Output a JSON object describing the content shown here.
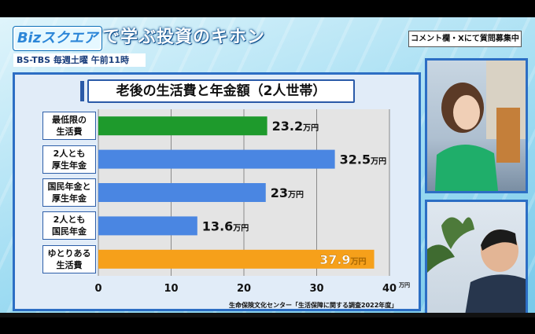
{
  "header": {
    "brand": "Bizスクエア",
    "show_title": "で学ぶ投資のキホン",
    "comment_notice": "コメント欄・Xにて質問募集中",
    "broadcast_info": "BS-TBS 毎週土曜 午前11時"
  },
  "source_note": "生命保険文化センター「生活保障に関する調査2022年度」",
  "colors": {
    "green": "#1e9a2c",
    "blue": "#4a86e2",
    "orange": "#f6a01a",
    "panel_border": "#2c6ec4"
  },
  "chart_data": {
    "type": "bar",
    "orientation": "horizontal",
    "title": "老後の生活費と年金額（2人世帯）",
    "categories": [
      "最低限の\n生活費",
      "2人とも\n厚生年金",
      "国民年金と\n厚生年金",
      "2人とも\n国民年金",
      "ゆとりある\n生活費"
    ],
    "values": [
      23.2,
      32.5,
      23,
      13.6,
      37.9
    ],
    "value_labels": [
      "23.2",
      "32.5",
      "23",
      "13.6",
      "37.9"
    ],
    "value_unit": "万円",
    "bar_colors": [
      "#1e9a2c",
      "#4a86e2",
      "#4a86e2",
      "#4a86e2",
      "#f6a01a"
    ],
    "x_ticks": [
      "0",
      "10",
      "20",
      "30",
      "40"
    ],
    "x_unit": "万円",
    "xlim": [
      0,
      40
    ],
    "grid": true
  }
}
